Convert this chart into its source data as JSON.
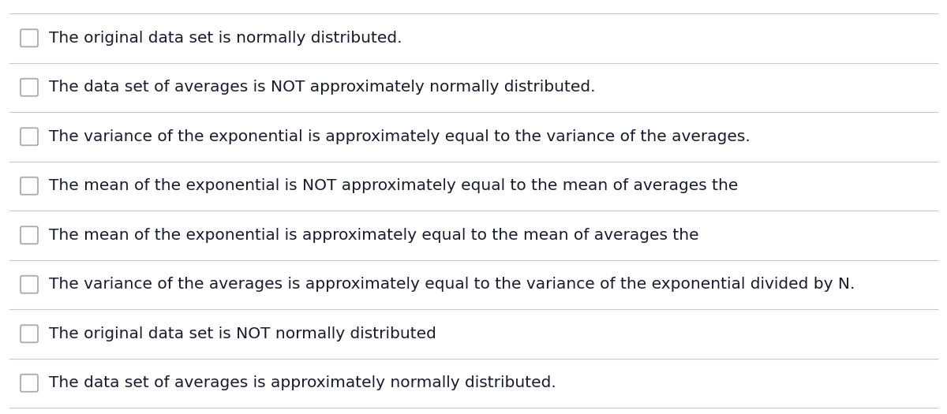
{
  "background_color": "#ffffff",
  "divider_color": "#c8c8c8",
  "text_color": "#1a1a2e",
  "checkbox_edge_color": "#aaaaaa",
  "items": [
    "The original data set is normally distributed.",
    "The data set of averages is NOT approximately normally distributed.",
    "The variance of the exponential is approximately equal to the variance of the averages.",
    "The mean of the exponential is NOT approximately equal to the mean of averages the",
    "The mean of the exponential is approximately equal to the mean of averages the",
    "The variance of the averages is approximately equal to the variance of the exponential divided by N.",
    "The original data set is NOT normally distributed",
    "The data set of averages is approximately normally distributed."
  ],
  "font_size": 14.5,
  "figsize": [
    12.0,
    5.25
  ],
  "dpi": 100
}
